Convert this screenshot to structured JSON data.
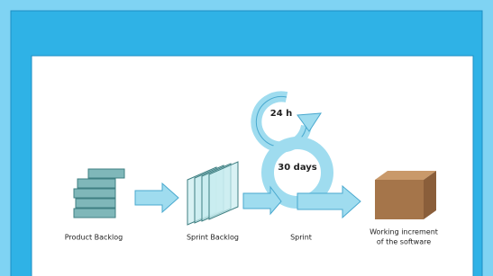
{
  "cycles": [
    {
      "label": "24 h"
    },
    {
      "label": "30 days"
    }
  ],
  "nodes": [
    {
      "lines": [
        "Product Backlog"
      ]
    },
    {
      "lines": [
        "Sprint Backlog"
      ]
    },
    {
      "lines": [
        "Sprint"
      ]
    },
    {
      "lines": [
        "Working increment",
        "of the software"
      ]
    }
  ]
}
